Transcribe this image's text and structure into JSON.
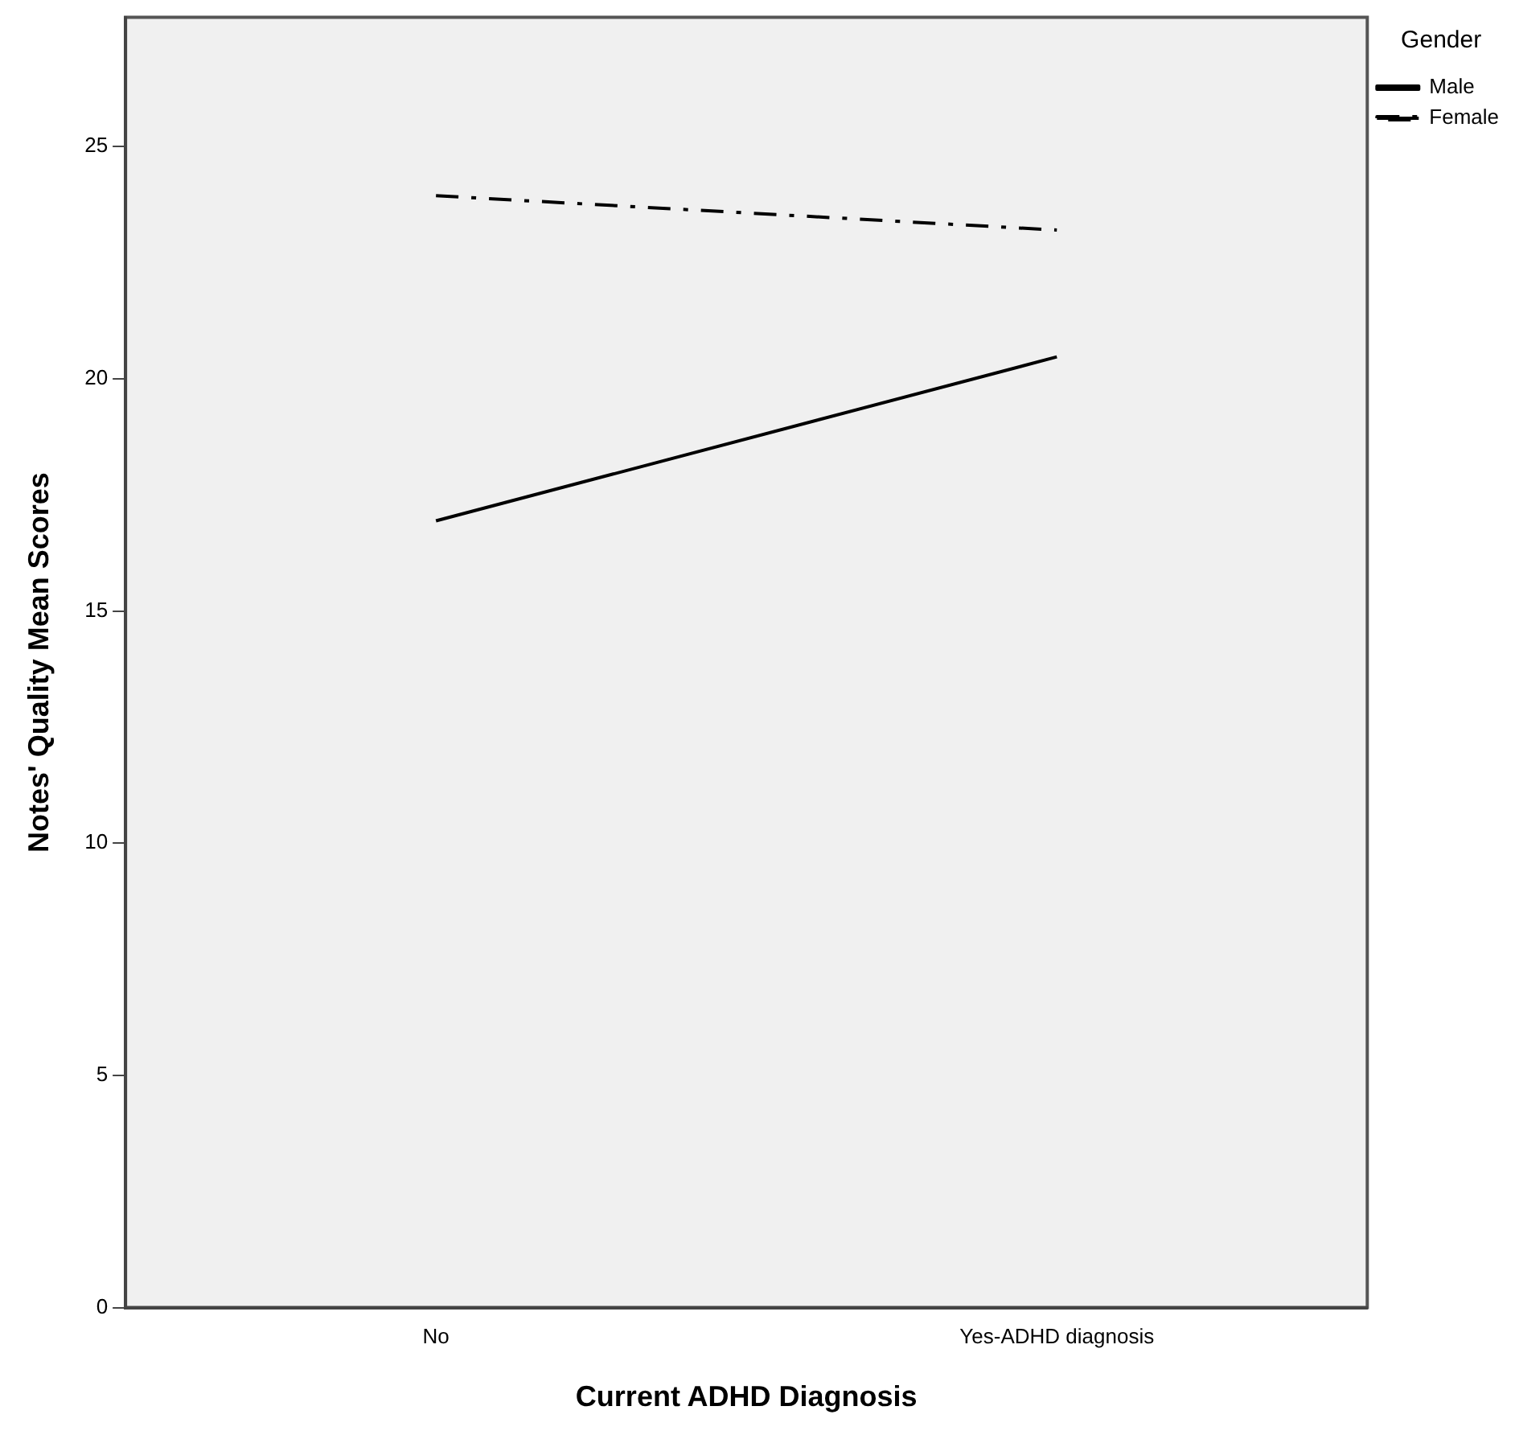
{
  "chart_data": {
    "type": "line",
    "xlabel": "Current ADHD Diagnosis",
    "ylabel": "Notes' Quality Mean Scores",
    "legend_title": "Gender",
    "categories": [
      "No",
      "Yes-ADHD diagnosis"
    ],
    "series": [
      {
        "name": "Male",
        "color": "#000000",
        "values": [
          16.94,
          20.47
        ],
        "line_style": "solid"
      },
      {
        "name": "Female",
        "color": "#000000",
        "values": [
          23.94,
          23.2
        ],
        "line_style": "dashed"
      }
    ],
    "ylim": [
      0,
      27.78
    ],
    "yticks": [
      0,
      5,
      10,
      15,
      20,
      25
    ],
    "grid": false,
    "legend": "top right",
    "marker": "none"
  }
}
